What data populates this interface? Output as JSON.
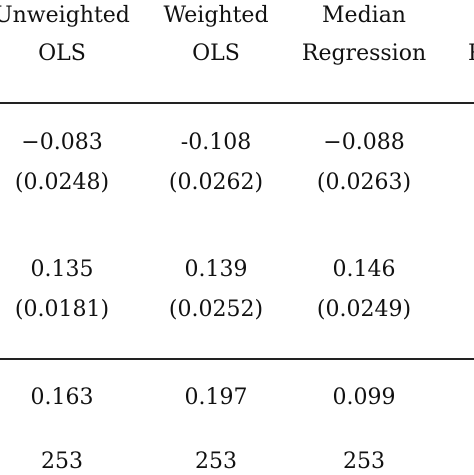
{
  "table": {
    "columns": [
      {
        "line1": "Unweighted",
        "line2": "OLS"
      },
      {
        "line1": "Weighted",
        "line2": "OLS"
      },
      {
        "line1": "Median",
        "line2": "Regression"
      },
      {
        "line1": "",
        "line2": "R"
      }
    ],
    "rows": [
      {
        "coef": [
          "−0.083",
          "-0.108",
          "−0.088"
        ],
        "se": [
          "(0.0248)",
          "(0.0262)",
          "(0.0263)"
        ]
      },
      {
        "coef": [
          "0.135",
          "0.139",
          "0.146"
        ],
        "se": [
          "(0.0181)",
          "(0.0252)",
          "(0.0249)"
        ]
      }
    ],
    "stats": [
      {
        "values": [
          "0.163",
          "0.197",
          "0.099"
        ]
      },
      {
        "values": [
          "253",
          "253",
          "253"
        ]
      }
    ]
  }
}
